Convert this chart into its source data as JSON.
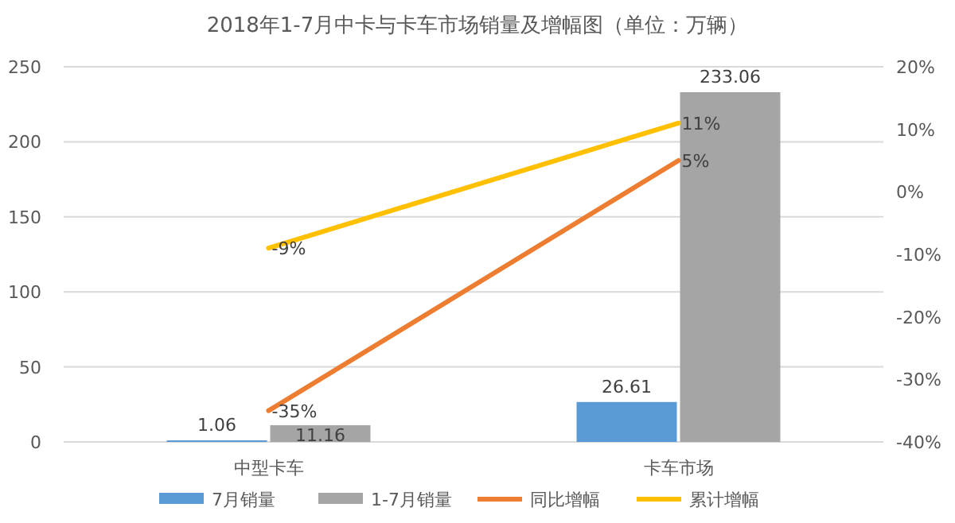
{
  "chart_data": {
    "type": "bar",
    "title": "2018年1-7月中卡与卡车市场销量及增幅图（单位：万辆）",
    "categories": [
      "中型卡车",
      "卡车市场"
    ],
    "series": [
      {
        "name": "7月销量",
        "color": "#5b9bd5",
        "values": [
          1.06,
          26.61
        ],
        "value_labels": [
          "1.06",
          "26.61"
        ]
      },
      {
        "name": "1-7月销量",
        "color": "#a5a5a5",
        "values": [
          11.16,
          233.06
        ],
        "value_labels": [
          "11.16",
          "233.06"
        ]
      },
      {
        "name": "同比增幅",
        "type": "line",
        "axis": "y2",
        "color": "#ed7d31",
        "values": [
          -35,
          5
        ],
        "value_labels": [
          "-35%",
          "5%"
        ]
      },
      {
        "name": "累计增幅",
        "type": "line",
        "axis": "y2",
        "color": "#ffc000",
        "values": [
          -9,
          11
        ],
        "value_labels": [
          "-9%",
          "11%"
        ]
      }
    ],
    "ylim": [
      0,
      250
    ],
    "yticks": [
      0,
      50,
      100,
      150,
      200,
      250
    ],
    "y2lim": [
      -40,
      20
    ],
    "y2ticks": [
      {
        "value": -40,
        "label": "-40%"
      },
      {
        "value": -30,
        "label": "-30%"
      },
      {
        "value": -20,
        "label": "-20%"
      },
      {
        "value": -10,
        "label": "-10%"
      },
      {
        "value": 0,
        "label": "0%"
      },
      {
        "value": 10,
        "label": "10%"
      },
      {
        "value": 20,
        "label": "20%"
      }
    ],
    "grid": "y",
    "legend": "bottom"
  }
}
